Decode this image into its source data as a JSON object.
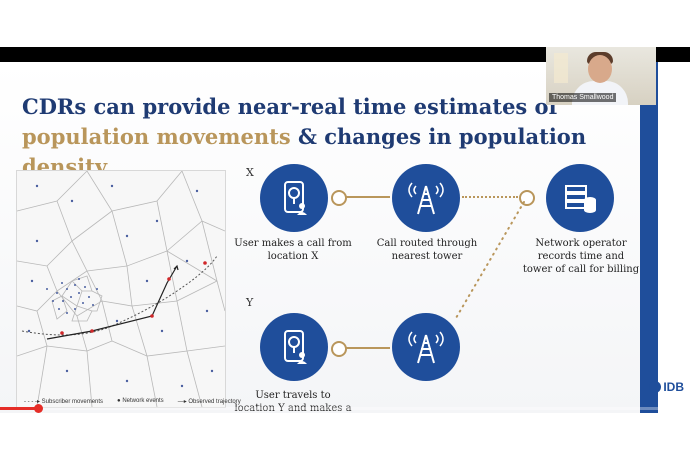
{
  "slide": {
    "title_part1": "CDRs can provide near-real time estimates of ",
    "title_gold1": "population movements",
    "title_part2": " & changes in population ",
    "title_gold2": "density",
    "label_x": "X",
    "label_y": "Y",
    "captions": {
      "call_from_x": "User makes a call from location X",
      "routed_tower": "Call routed through nearest tower",
      "operator_records": "Network operator records time and tower of call for billing",
      "travel_to_y": "User travels to location Y and makes a call"
    },
    "map_legend": {
      "subscriber_movements": "Subscriber movements",
      "network_events": "Network events",
      "observed_trajectory": "Observed trajectory"
    }
  },
  "logo": {
    "text": "IDB"
  },
  "webcam": {
    "name": "Thomas Smallwood"
  },
  "player": {
    "progress": 0.055
  },
  "bottom_cut_text": "",
  "colors": {
    "navy": "#1f3b73",
    "blue": "#1f4e9b",
    "gold": "#b9965b",
    "red": "#e52d27"
  },
  "icons": [
    "phone-location-icon",
    "cell-tower-icon",
    "server-database-icon",
    "phone-location-icon",
    "cell-tower-icon"
  ]
}
